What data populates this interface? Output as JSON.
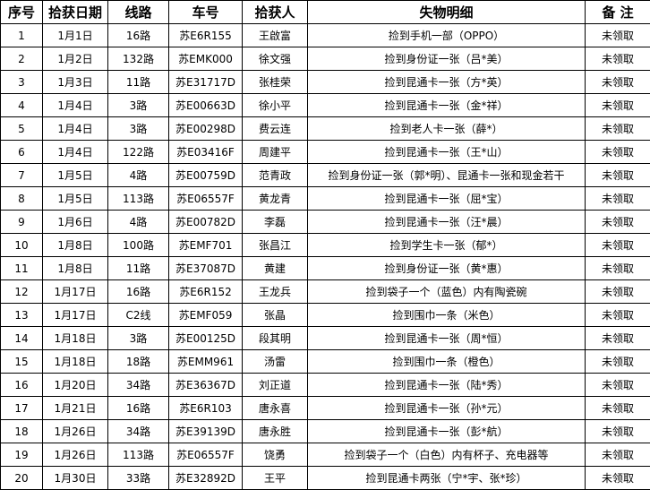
{
  "headers": [
    "序号",
    "拾获日期",
    "线路",
    "车号",
    "拾获人",
    "失物明细",
    "备 注"
  ],
  "rows": [
    [
      "1",
      "1月1日",
      "16路",
      "苏E6R155",
      "王啟富",
      "捡到手机一部（OPPO）",
      "未领取"
    ],
    [
      "2",
      "1月2日",
      "132路",
      "苏EMK000",
      "徐文强",
      "捡到身份证一张（吕*美）",
      "未领取"
    ],
    [
      "3",
      "1月3日",
      "11路",
      "苏E31717D",
      "张桂荣",
      "捡到昆通卡一张（方*英）",
      "未领取"
    ],
    [
      "4",
      "1月4日",
      "3路",
      "苏E00663D",
      "徐小平",
      "捡到昆通卡一张（金*祥）",
      "未领取"
    ],
    [
      "5",
      "1月4日",
      "3路",
      "苏E00298D",
      "费云连",
      "捡到老人卡一张（薛*）",
      "未领取"
    ],
    [
      "6",
      "1月4日",
      "122路",
      "苏E03416F",
      "周建平",
      "捡到昆通卡一张（王*山）",
      "未领取"
    ],
    [
      "7",
      "1月5日",
      "4路",
      "苏E00759D",
      "范青政",
      "捡到身份证一张（郭*明）、昆通卡一张和现金若干",
      "未领取"
    ],
    [
      "8",
      "1月5日",
      "113路",
      "苏E06557F",
      "黄龙青",
      "捡到昆通卡一张（屈*宝）",
      "未领取"
    ],
    [
      "9",
      "1月6日",
      "4路",
      "苏E00782D",
      "李磊",
      "捡到昆通卡一张（汪*晨）",
      "未领取"
    ],
    [
      "10",
      "1月8日",
      "100路",
      "苏EMF701",
      "张昌江",
      "捡到学生卡一张（郁*）",
      "未领取"
    ],
    [
      "11",
      "1月8日",
      "11路",
      "苏E37087D",
      "黄建",
      "捡到身份证一张（黄*惠）",
      "未领取"
    ],
    [
      "12",
      "1月17日",
      "16路",
      "苏E6R152",
      "王龙兵",
      "捡到袋子一个（蓝色）内有陶瓷碗",
      "未领取"
    ],
    [
      "13",
      "1月17日",
      "C2线",
      "苏EMF059",
      "张晶",
      "捡到围巾一条（米色）",
      "未领取"
    ],
    [
      "14",
      "1月18日",
      "3路",
      "苏E00125D",
      "段其明",
      "捡到昆通卡一张（周*恒）",
      "未领取"
    ],
    [
      "15",
      "1月18日",
      "18路",
      "苏EMM961",
      "汤雷",
      "捡到围巾一条（橙色）",
      "未领取"
    ],
    [
      "16",
      "1月20日",
      "34路",
      "苏E36367D",
      "刘正道",
      "捡到昆通卡一张（陆*秀）",
      "未领取"
    ],
    [
      "17",
      "1月21日",
      "16路",
      "苏E6R103",
      "唐永喜",
      "捡到昆通卡一张（孙*元）",
      "未领取"
    ],
    [
      "18",
      "1月26日",
      "34路",
      "苏E39139D",
      "唐永胜",
      "捡到昆通卡一张（彭*航）",
      "未领取"
    ],
    [
      "19",
      "1月26日",
      "113路",
      "苏E06557F",
      "饶勇",
      "捡到袋子一个（白色）内有杯子、充电器等",
      "未领取"
    ],
    [
      "20",
      "1月30日",
      "33路",
      "苏E32892D",
      "王平",
      "捡到昆通卡两张（宁*宇、张*珍）",
      "未领取"
    ]
  ]
}
